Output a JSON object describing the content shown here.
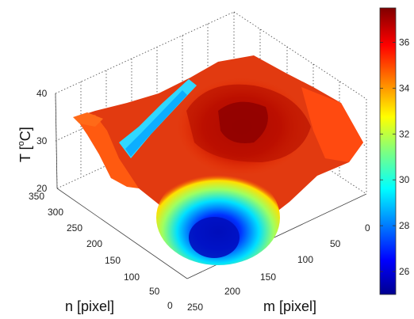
{
  "chart_data": {
    "type": "surface3d",
    "title": "",
    "zlabel": {
      "prefix": "T [",
      "sup": "o",
      "suffix": "C]"
    },
    "xlabel": "m [pixel]",
    "ylabel": "n [pixel]",
    "xticks": [
      "0",
      "50",
      "100",
      "150",
      "200",
      "250"
    ],
    "yticks": [
      "0",
      "50",
      "100",
      "150",
      "200",
      "250",
      "300",
      "350"
    ],
    "zticks": [
      "20",
      "30",
      "40"
    ],
    "xlim": [
      0,
      250
    ],
    "ylim": [
      0,
      350
    ],
    "zlim": [
      20,
      40
    ],
    "colorbar": {
      "ticks": [
        "26",
        "28",
        "30",
        "32",
        "34",
        "36"
      ],
      "range": [
        25,
        37.5
      ],
      "colormap": "jet"
    },
    "grid": true,
    "surface": {
      "description_values_approx": "thermal surface; mostly 33-37 °C with a hot central region near 37.5 °C and a cold lobe near m≈220, n≈80 dropping to ~25 °C",
      "peak_temperature": 37.5,
      "min_temperature": 25
    }
  }
}
